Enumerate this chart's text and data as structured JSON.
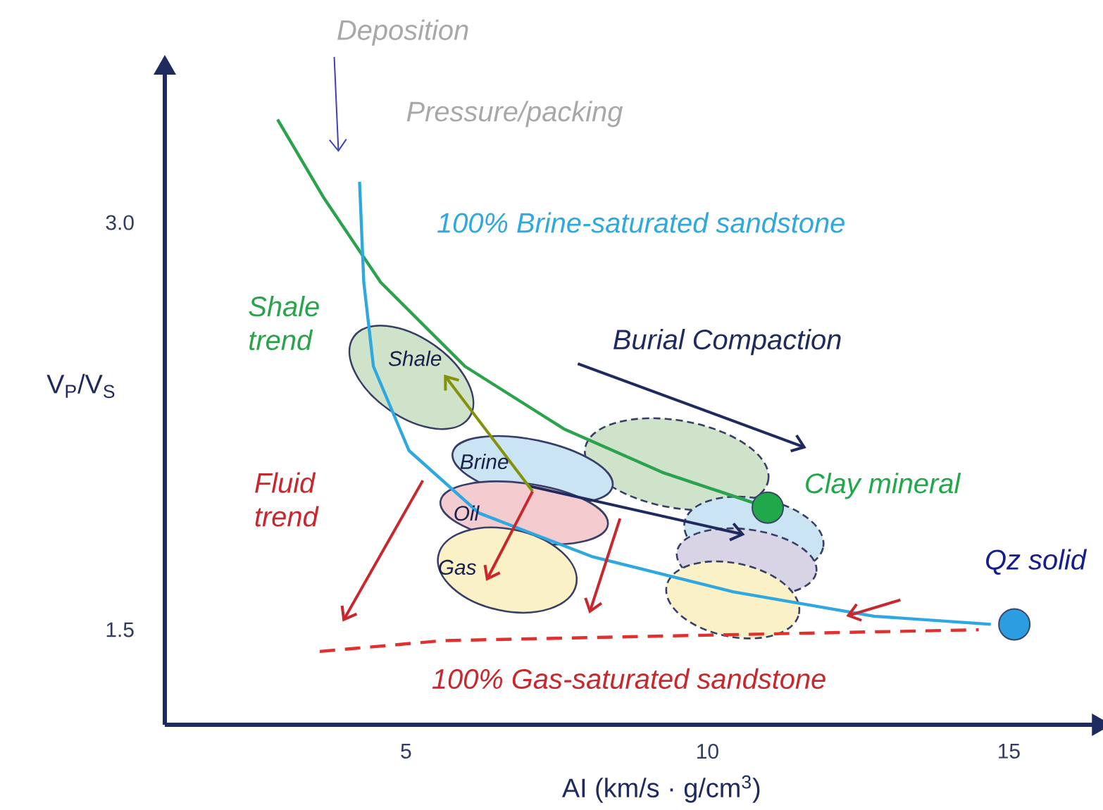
{
  "chart_data": {
    "type": "line",
    "xlabel": "AI (km/s · g/cm$^{3}$)",
    "ylabel": "V$_{P}$/V$_{S}$",
    "xlim": [
      1,
      16.4
    ],
    "ylim": [
      1.15,
      3.55
    ],
    "xticks": [
      5,
      10,
      15
    ],
    "yticks": [
      1.5,
      {
        "value": 3,
        "label": "3.0"
      }
    ],
    "marker": "none",
    "line_style": "solid",
    "series": [
      {
        "color": "#2ba24c",
        "x": [
          2.87,
          3.64,
          4.58,
          5.98,
          7.62,
          9.25,
          11.0
        ],
        "values": [
          3.38,
          3.09,
          2.78,
          2.47,
          2.24,
          2.08,
          1.95
        ]
      },
      {
        "color": "#2fa8e0",
        "x": [
          4.23,
          4.3,
          4.46,
          5.05,
          6.21,
          8.08,
          10.42,
          12.76,
          14.7
        ],
        "values": [
          3.15,
          2.78,
          2.47,
          2.16,
          1.93,
          1.77,
          1.64,
          1.55,
          1.52
        ]
      },
      {
        "color": "#e0312f",
        "line_style": "dashed",
        "x": [
          3.57,
          5.61,
          9.95,
          14.5
        ],
        "values": [
          1.42,
          1.46,
          1.48,
          1.5
        ]
      },
      {
        "type": "scatter",
        "marker": "circle",
        "color": "#20a84a",
        "x": [
          11.0
        ],
        "values": [
          1.95
        ]
      },
      {
        "type": "scatter",
        "marker": "circle",
        "color": "#2a9ee0",
        "x": [
          15.09
        ],
        "values": [
          1.52
        ]
      }
    ],
    "annotations": [
      "Deposition",
      "Pressure/packing",
      "100% Brine-saturated sandstone",
      "Shale trend",
      "Burial Compaction",
      "Clay mineral",
      "Qz solid",
      "Fluid trend",
      "100% Gas-saturated sandstone",
      "Shale",
      "Brine",
      "Oil",
      "Gas"
    ]
  }
}
